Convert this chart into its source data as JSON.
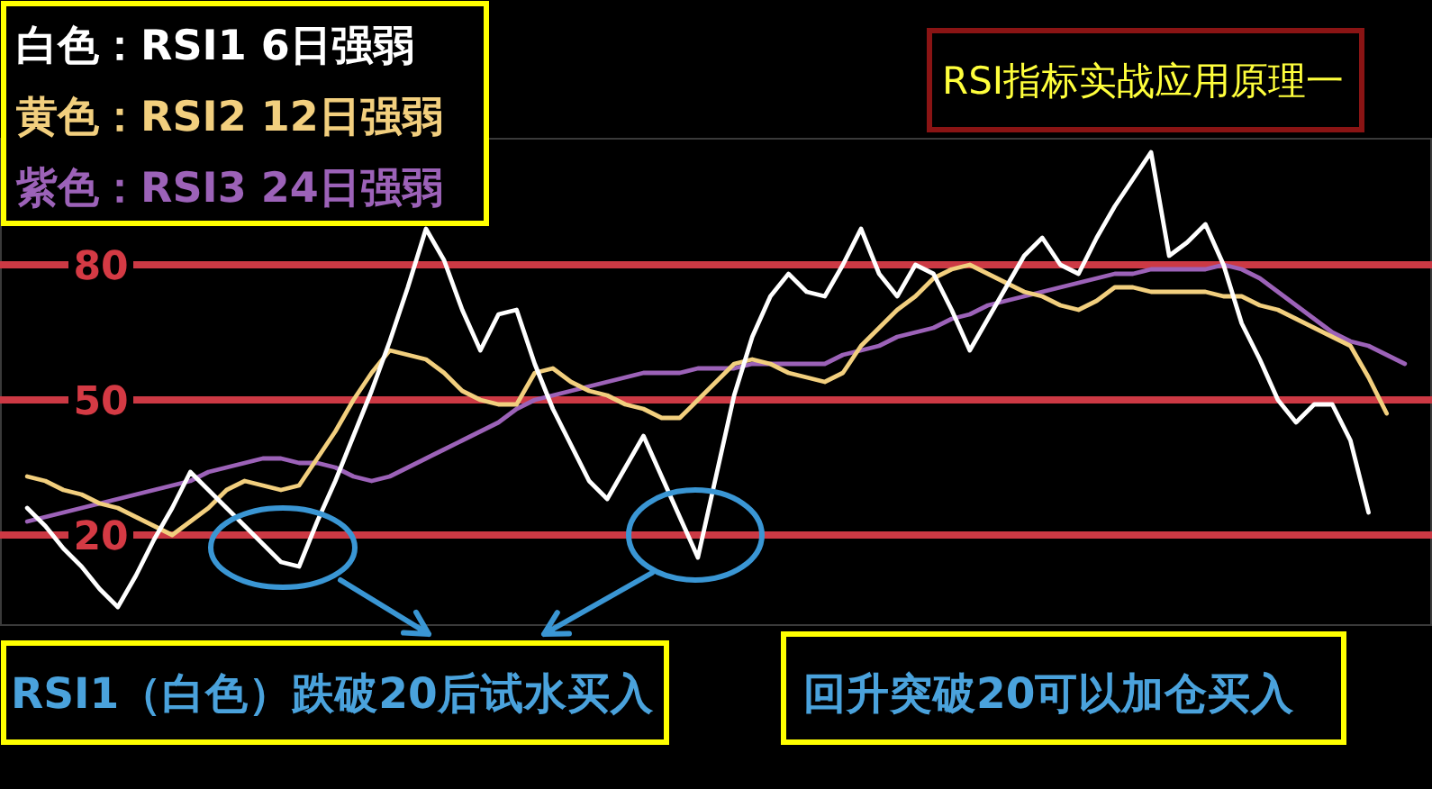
{
  "chart_data": {
    "type": "line",
    "title": "RSI指标实战应用原理一",
    "categories": [
      null,
      null,
      null,
      null,
      null,
      null,
      null,
      null,
      null,
      null,
      null,
      null,
      null,
      null,
      null,
      null,
      null,
      null,
      null,
      null,
      null,
      null,
      null,
      null,
      null,
      null,
      null,
      null,
      null,
      null,
      null,
      null,
      null,
      null,
      null,
      null,
      null,
      null,
      null,
      null,
      null,
      null,
      null,
      null,
      null,
      null,
      null,
      null,
      null,
      null,
      null,
      null,
      null,
      null,
      null,
      null,
      null,
      null,
      null,
      null,
      null,
      null,
      null,
      null,
      null,
      null,
      null,
      null,
      null,
      null,
      null,
      null,
      null,
      null,
      null,
      null,
      null,
      null,
      null
    ],
    "series": [
      {
        "name": "白色：RSI1 6日强弱",
        "color": "#ffffff",
        "values": [
          null,
          26,
          22,
          17,
          13,
          8,
          4,
          11,
          19,
          26,
          34,
          30,
          26,
          22,
          18,
          14,
          13,
          23,
          32,
          42,
          52,
          63,
          75,
          88,
          81,
          70,
          61,
          69,
          70,
          58,
          48,
          40,
          32,
          28,
          35,
          42,
          33,
          24,
          15,
          33,
          51,
          64,
          73,
          78,
          74,
          73,
          80,
          88,
          78,
          73,
          80,
          78,
          70,
          61,
          68,
          75,
          82,
          86,
          80,
          78,
          86,
          93,
          99,
          105,
          82,
          85,
          89,
          80,
          67,
          59,
          50,
          45,
          49,
          49,
          41,
          25,
          null,
          null,
          null
        ]
      },
      {
        "name": "黄色：RSI2 12日强弱",
        "color": "#f2cf7e",
        "values": [
          null,
          33,
          32,
          30,
          29,
          27,
          26,
          24,
          22,
          20,
          23,
          26,
          30,
          32,
          31,
          30,
          31,
          37,
          43,
          50,
          56,
          61,
          60,
          59,
          56,
          52,
          50,
          49,
          49,
          56,
          57,
          54,
          52,
          51,
          49,
          48,
          46,
          46,
          50,
          54,
          58,
          59,
          58,
          56,
          55,
          54,
          56,
          62,
          66,
          70,
          73,
          77,
          79,
          80,
          78,
          76,
          74,
          73,
          71,
          70,
          72,
          75,
          75,
          74,
          74,
          74,
          74,
          73,
          73,
          71,
          70,
          68,
          66,
          64,
          62,
          55,
          47,
          null,
          null
        ]
      },
      {
        "name": "紫色：RSI3 24日强弱",
        "color": "#9c62b8",
        "values": [
          null,
          23,
          24,
          25,
          26,
          27,
          28,
          29,
          30,
          31,
          32,
          34,
          35,
          36,
          37,
          37,
          36,
          36,
          35,
          33,
          32,
          33,
          35,
          37,
          39,
          41,
          43,
          45,
          48,
          50,
          51,
          52,
          53,
          54,
          55,
          56,
          56,
          56,
          57,
          57,
          57,
          58,
          58,
          58,
          58,
          58,
          60,
          61,
          62,
          64,
          65,
          66,
          68,
          69,
          71,
          72,
          73,
          74,
          75,
          76,
          77,
          78,
          78,
          79,
          79,
          79,
          79,
          80,
          79,
          77,
          74,
          71,
          68,
          65,
          63,
          62,
          60,
          58,
          null
        ]
      }
    ],
    "ylim": [
      0,
      108
    ],
    "yticks": [
      20,
      50,
      80
    ],
    "tick_labels": "y",
    "ref_lines": [
      {
        "axis": "y",
        "value": 80,
        "color": "#cc3944"
      },
      {
        "axis": "y",
        "value": 50,
        "color": "#cc3944"
      },
      {
        "axis": "y",
        "value": 20,
        "color": "#cc3944"
      }
    ],
    "annotations": [
      "RSI1（白色）跌破20后试水买入",
      "回升突破20可以加仓买入"
    ],
    "legend": "top left"
  }
}
